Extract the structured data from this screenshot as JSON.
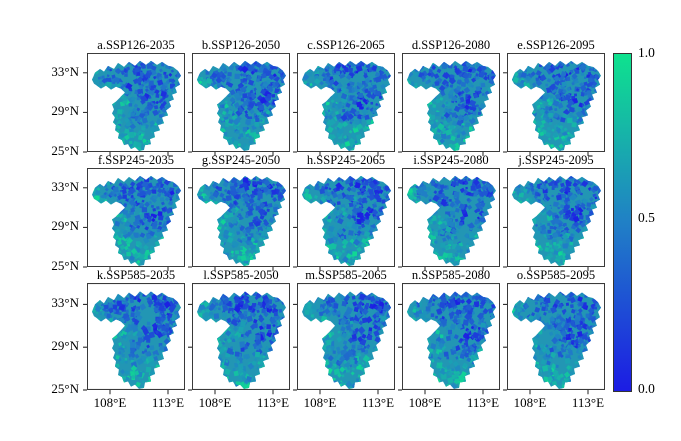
{
  "figure": {
    "background": "#ffffff",
    "panels": [
      {
        "label": "a.SSP126-2035"
      },
      {
        "label": "b.SSP126-2050"
      },
      {
        "label": "c.SSP126-2065"
      },
      {
        "label": "d.SSP126-2080"
      },
      {
        "label": "e.SSP126-2095"
      },
      {
        "label": "f.SSP245-2035"
      },
      {
        "label": "g.SSP245-2050"
      },
      {
        "label": "h.SSP245-2065"
      },
      {
        "label": "i.SSP245-2080"
      },
      {
        "label": "j.SSP245-2095"
      },
      {
        "label": "k.SSP585-2035"
      },
      {
        "label": "l.SSP585-2050"
      },
      {
        "label": "m.SSP585-2065"
      },
      {
        "label": "n.SSP585-2080"
      },
      {
        "label": "o.SSP585-2095"
      }
    ],
    "y_tick_labels": [
      "33°N",
      "29°N",
      "25°N"
    ],
    "x_tick_labels": [
      "108°E",
      "113°E"
    ],
    "colorbar": {
      "tick_labels": [
        "1.0",
        "0.5",
        "0.0"
      ],
      "color_top": "#0ee28e",
      "color_mid": "#2080c6",
      "color_bottom": "#1c1ce4"
    }
  },
  "chart_data": {
    "type": "heatmap",
    "subtype": "multi-panel choropleth maps",
    "grid": {
      "rows": 3,
      "cols": 5
    },
    "panel_titles": [
      "a.SSP126-2035",
      "b.SSP126-2050",
      "c.SSP126-2065",
      "d.SSP126-2080",
      "e.SSP126-2095",
      "f.SSP245-2035",
      "g.SSP245-2050",
      "h.SSP245-2065",
      "i.SSP245-2080",
      "j.SSP245-2095",
      "k.SSP585-2035",
      "l.SSP585-2050",
      "m.SSP585-2065",
      "n.SSP585-2080",
      "o.SSP585-2095"
    ],
    "scenarios": [
      "SSP126",
      "SSP245",
      "SSP585"
    ],
    "years": [
      "2035",
      "2050",
      "2065",
      "2080",
      "2095"
    ],
    "x_ticks": [
      "108°E",
      "113°E"
    ],
    "y_ticks": [
      "33°N",
      "29°N",
      "25°N"
    ],
    "colorbar": {
      "min": 0.0,
      "mid": 0.5,
      "max": 1.0,
      "orientation": "vertical",
      "position": "right",
      "colors_low_to_high": [
        "#1c1ce4",
        "#2080c6",
        "#0ee28e"
      ]
    },
    "value_pattern": "low (blue, ~0-0.3) values concentrated in the north band and center-east of the basin; higher (teal-green, ~0.5-0.9) values across the south and west"
  }
}
